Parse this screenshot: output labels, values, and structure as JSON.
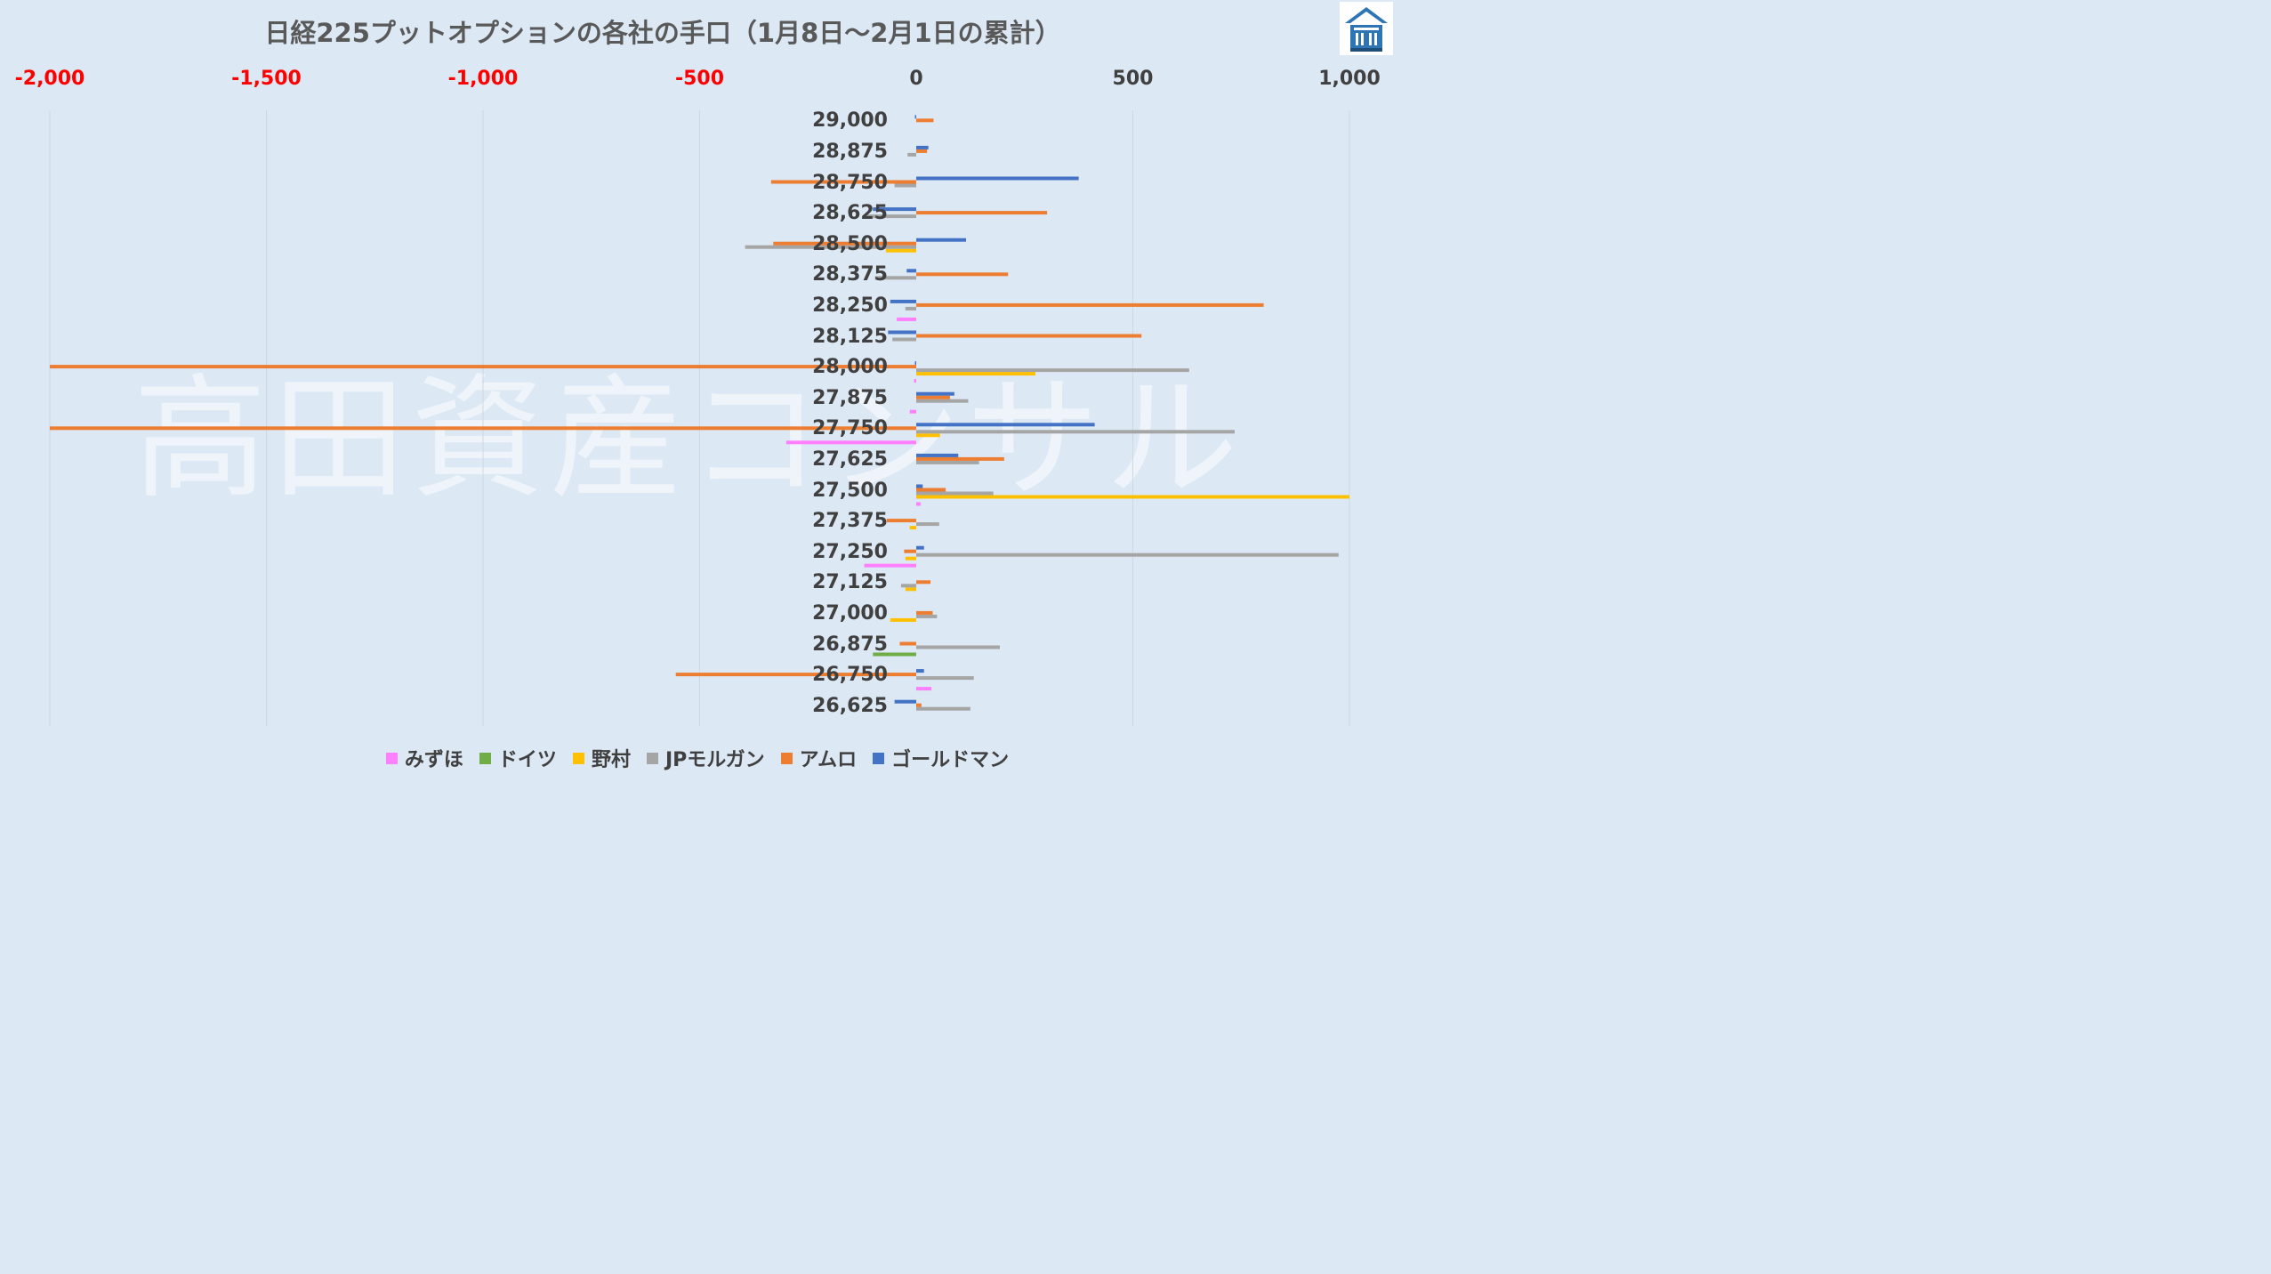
{
  "chart_data": {
    "type": "bar",
    "orientation": "horizontal",
    "title": "日経225プットオプションの各社の手口（1月8日～2月1日の累計）",
    "xlim": [
      -2000,
      1000
    ],
    "x_ticks": [
      -2000,
      -1500,
      -1000,
      -500,
      0,
      500,
      1000
    ],
    "x_tick_labels": [
      "-2,000",
      "-1,500",
      "-1,000",
      "-500",
      "0",
      "500",
      "1,000"
    ],
    "negative_tick_color": "#ff0000",
    "positive_tick_color": "#404040",
    "grid": "vertical",
    "legend_position": "bottom",
    "categories": [
      "29,000",
      "28,875",
      "28,750",
      "28,625",
      "28,500",
      "28,375",
      "28,250",
      "28,125",
      "28,000",
      "27,875",
      "27,750",
      "27,625",
      "27,500",
      "27,375",
      "27,250",
      "27,125",
      "27,000",
      "26,875",
      "26,750",
      "26,625"
    ],
    "series": [
      {
        "name": "みずほ",
        "color": "#ff80ff",
        "values": [
          0,
          0,
          0,
          0,
          0,
          0,
          -45,
          0,
          -5,
          -15,
          -300,
          0,
          10,
          0,
          -120,
          0,
          0,
          0,
          35,
          0
        ]
      },
      {
        "name": "ドイツ",
        "color": "#70ad47",
        "values": [
          0,
          0,
          0,
          0,
          0,
          0,
          0,
          0,
          0,
          0,
          0,
          0,
          0,
          0,
          0,
          0,
          0,
          -100,
          0,
          0
        ]
      },
      {
        "name": "野村",
        "color": "#ffc000",
        "values": [
          0,
          0,
          0,
          0,
          -70,
          0,
          0,
          0,
          275,
          0,
          55,
          0,
          1000,
          -15,
          -25,
          -25,
          -60,
          0,
          0,
          0
        ]
      },
      {
        "name": "JPモルガン",
        "color": "#a5a5a5",
        "values": [
          0,
          -20,
          -50,
          -115,
          -395,
          -95,
          -25,
          -55,
          630,
          120,
          735,
          145,
          178,
          53,
          975,
          -35,
          48,
          193,
          133,
          125
        ]
      },
      {
        "name": "アムロ",
        "color": "#ed7d31",
        "values": [
          40,
          25,
          -335,
          302,
          -330,
          212,
          802,
          520,
          -2000,
          78,
          -2000,
          203,
          68,
          -68,
          -28,
          33,
          38,
          -38,
          -555,
          12
        ]
      },
      {
        "name": "ゴールドマン",
        "color": "#4472c4",
        "values": [
          -3,
          28,
          375,
          -100,
          115,
          -22,
          -60,
          -65,
          -3,
          88,
          412,
          97,
          15,
          0,
          18,
          0,
          0,
          0,
          18,
          -50
        ]
      }
    ]
  },
  "logo": {
    "name": "house-logo",
    "text": "高田資産コンサル",
    "colors": {
      "primary": "#2e75b6",
      "secondary": "#1f4e79"
    }
  }
}
